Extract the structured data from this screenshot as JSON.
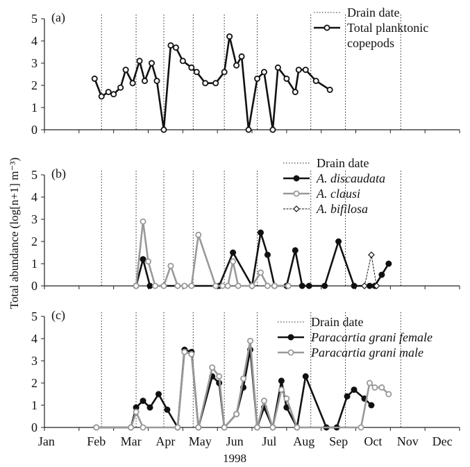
{
  "figure": {
    "xlabel": "1998",
    "ylabel": "Total abundance (log[n+1] m⁻³)",
    "month_labels": [
      "Jan",
      "Feb",
      "Mar",
      "Apr",
      "May",
      "Jun",
      "Jul",
      "Aug",
      "Sep",
      "Oct",
      "Nov",
      "Dec"
    ]
  },
  "chart_data": [
    {
      "type": "line",
      "panel": "(a)",
      "ylim": [
        0,
        5
      ],
      "yticks": [
        0,
        1,
        2,
        3,
        4,
        5
      ],
      "x_units": "months from Jan 1 (0 = Jan, 11 = Dec)",
      "drain_dates": [
        1.65,
        2.65,
        3.45,
        4.3,
        5.2,
        6.15,
        7.7,
        8.7,
        10.3
      ],
      "legend": {
        "position": "top-right",
        "drain_label": "Drain date"
      },
      "series": [
        {
          "name": "Total planktonic copepods",
          "legend_lines": [
            "Total planktonic",
            "copepods"
          ],
          "color": "#111111",
          "marker": "open-circle",
          "x": [
            1.45,
            1.65,
            1.85,
            2.0,
            2.2,
            2.35,
            2.55,
            2.75,
            2.9,
            3.1,
            3.25,
            3.45,
            3.65,
            3.8,
            4.0,
            4.25,
            4.4,
            4.65,
            4.95,
            5.2,
            5.35,
            5.55,
            5.7,
            5.9,
            6.15,
            6.35,
            6.6,
            6.75,
            7.0,
            7.25,
            7.35,
            7.55,
            7.85,
            8.25,
            8.55,
            8.85,
            9.15,
            9.55,
            9.8,
            9.95
          ],
          "y": [
            2.3,
            1.5,
            1.7,
            1.6,
            1.9,
            2.7,
            2.1,
            3.1,
            2.2,
            3.0,
            2.2,
            0,
            3.8,
            3.7,
            3.1,
            2.8,
            2.6,
            2.1,
            2.1,
            2.6,
            4.2,
            2.9,
            3.3,
            0,
            2.3,
            2.6,
            0,
            2.8,
            2.3,
            1.7,
            2.7,
            2.7,
            2.2,
            1.8,
            null,
            null,
            null,
            null,
            null,
            null
          ]
        }
      ]
    },
    {
      "type": "line",
      "panel": "(b)",
      "ylim": [
        0,
        5
      ],
      "yticks": [
        0,
        1,
        2,
        3,
        4,
        5
      ],
      "x_units": "months from Jan 1 (0 = Jan, 11 = Dec)",
      "drain_dates": [
        1.65,
        2.65,
        3.45,
        4.3,
        5.2,
        6.15,
        7.7,
        8.7,
        10.3
      ],
      "legend": {
        "position": "top-right",
        "drain_label": "Drain date"
      },
      "series": [
        {
          "name": "A. discaudata",
          "color": "#111111",
          "marker": "filled-circle",
          "x": [
            2.65,
            2.85,
            3.05,
            5.05,
            5.45,
            6.0,
            6.25,
            6.45,
            6.65,
            7.0,
            7.25,
            7.45,
            7.65,
            8.1,
            8.5,
            8.95,
            9.4,
            9.55,
            9.75,
            9.95
          ],
          "y": [
            0,
            1.2,
            0,
            0,
            1.5,
            0,
            2.4,
            1.4,
            0,
            0,
            1.6,
            0,
            0,
            0,
            2.0,
            0,
            0,
            0,
            0.5,
            1.0
          ]
        },
        {
          "name": "A. clausi",
          "color": "#999999",
          "marker": "open-circle",
          "x": [
            2.65,
            2.85,
            3.0,
            3.2,
            3.45,
            3.65,
            3.85,
            4.05,
            4.25,
            4.45,
            4.95,
            5.15,
            5.3,
            5.45,
            5.6,
            6.0,
            6.25,
            6.45,
            6.65,
            7.05
          ],
          "y": [
            0,
            2.9,
            1.1,
            0,
            0,
            0.9,
            0,
            0,
            0,
            2.3,
            0,
            0,
            0,
            1.1,
            0,
            0,
            0.6,
            0,
            0,
            0
          ]
        },
        {
          "name": "A. bifilosa",
          "color": "#111111",
          "marker": "open-diamond",
          "x": [
            9.25,
            9.45,
            9.6
          ],
          "y": [
            0,
            1.4,
            0
          ]
        }
      ]
    },
    {
      "type": "line",
      "panel": "(c)",
      "ylim": [
        0,
        5
      ],
      "yticks": [
        0,
        1,
        2,
        3,
        4,
        5
      ],
      "x_units": "months from Jan 1 (0 = Jan, 11 = Dec)",
      "drain_dates": [
        1.65,
        2.65,
        3.45,
        4.3,
        5.2,
        6.15,
        7.7,
        8.7,
        10.3
      ],
      "legend": {
        "position": "top-right",
        "drain_label": "Drain date"
      },
      "series": [
        {
          "name": "Paracartia grani female",
          "color": "#111111",
          "marker": "filled-circle",
          "x": [
            1.5,
            2.5,
            2.65,
            2.85,
            3.05,
            3.3,
            3.55,
            3.85,
            4.05,
            4.25,
            4.45,
            4.85,
            5.05,
            5.2,
            5.55,
            5.75,
            5.95,
            6.15,
            6.35,
            6.6,
            6.85,
            7.0,
            7.3,
            7.55,
            8.15,
            8.45,
            8.75,
            8.95,
            9.25,
            9.45,
            9.65,
            9.85
          ],
          "y": [
            0,
            0,
            0.9,
            1.2,
            0.9,
            1.5,
            0.8,
            0,
            3.5,
            3.4,
            0,
            2.3,
            2.0,
            0,
            0.6,
            1.8,
            3.5,
            0,
            0.9,
            0,
            2.1,
            0.9,
            0,
            2.3,
            0,
            0,
            1.4,
            1.7,
            1.3,
            1.0,
            null,
            null
          ]
        },
        {
          "name": "Paracartia grani male",
          "color": "#999999",
          "marker": "open-circle",
          "x": [
            1.5,
            2.5,
            2.65,
            2.85,
            3.85,
            4.05,
            4.25,
            4.45,
            4.85,
            5.05,
            5.2,
            5.55,
            5.75,
            5.95,
            6.15,
            6.35,
            6.6,
            6.85,
            7.0,
            7.3,
            9.15,
            9.4,
            9.55,
            9.75,
            9.95
          ],
          "y": [
            0,
            0,
            0.7,
            0,
            0,
            3.4,
            3.3,
            0,
            2.7,
            2.3,
            0,
            0.6,
            2.2,
            3.9,
            0,
            1.2,
            0,
            1.7,
            1.3,
            0,
            0,
            2.0,
            1.8,
            1.8,
            1.5
          ]
        }
      ]
    }
  ]
}
